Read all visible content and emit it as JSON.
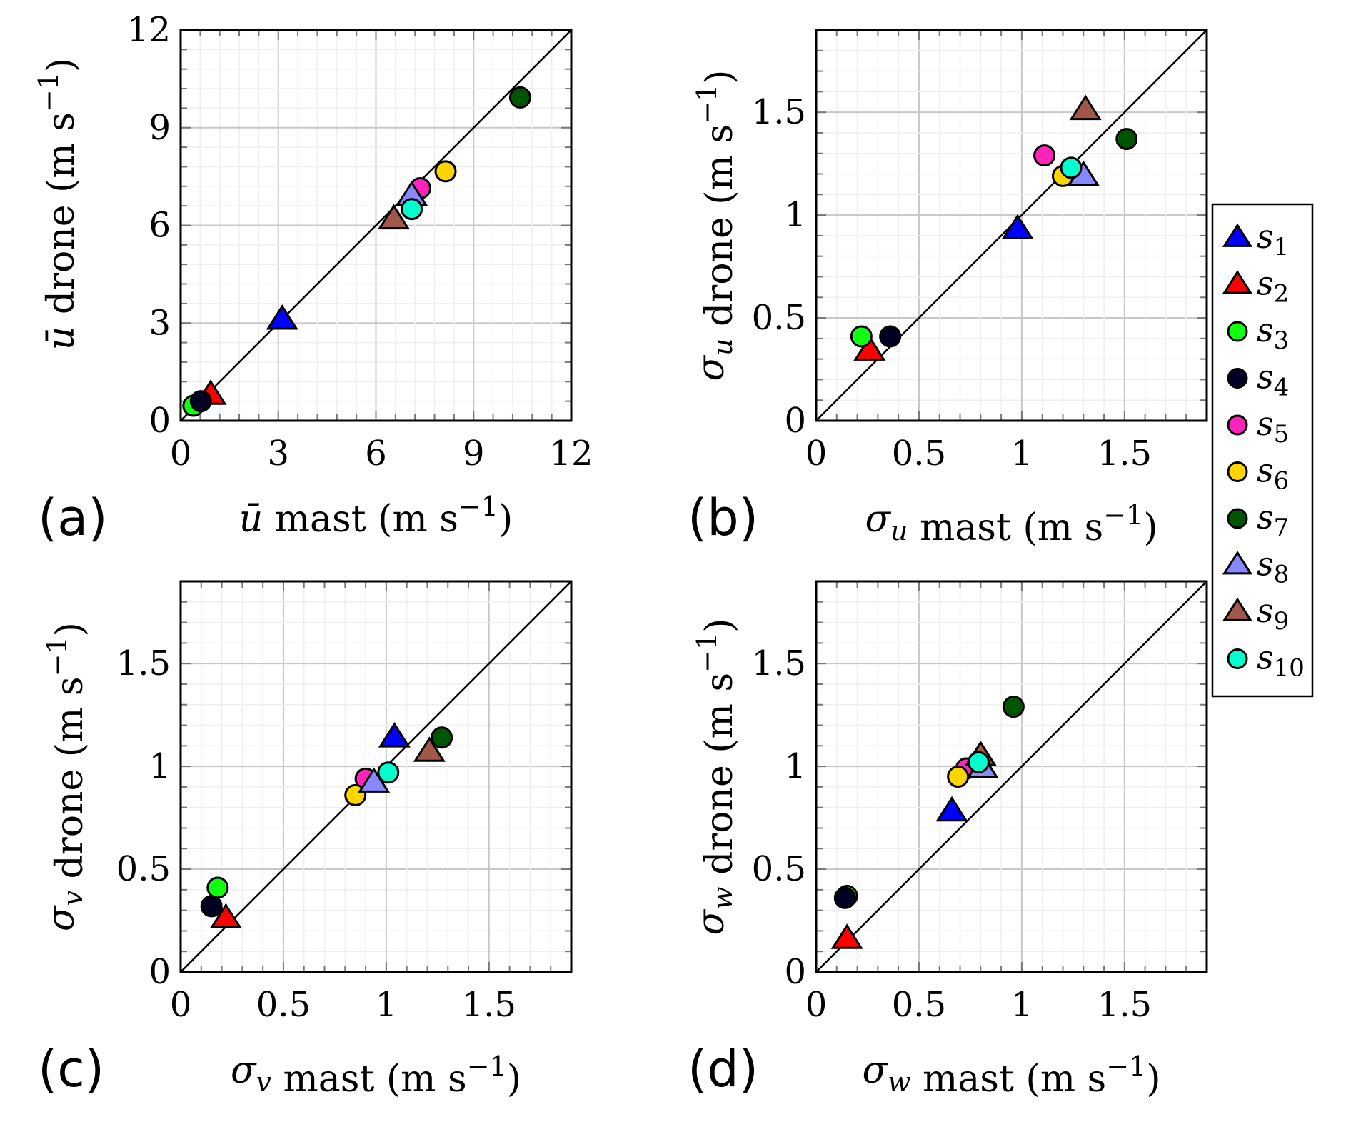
{
  "series": [
    {
      "name": "s",
      "sub": "1",
      "marker": "triangle",
      "color": "#0000ff"
    },
    {
      "name": "s",
      "sub": "2",
      "marker": "triangle",
      "color": "#ff0000"
    },
    {
      "name": "s",
      "sub": "3",
      "marker": "circle",
      "color": "#11ff11"
    },
    {
      "name": "s",
      "sub": "4",
      "marker": "circle",
      "color": "#000022"
    },
    {
      "name": "s",
      "sub": "5",
      "marker": "circle",
      "color": "#ff22bb"
    },
    {
      "name": "s",
      "sub": "6",
      "marker": "circle",
      "color": "#ffd500"
    },
    {
      "name": "s",
      "sub": "7",
      "marker": "circle",
      "color": "#005500"
    },
    {
      "name": "s",
      "sub": "8",
      "marker": "triangle",
      "color": "#8888ff"
    },
    {
      "name": "s",
      "sub": "9",
      "marker": "triangle",
      "color": "#a0584a"
    },
    {
      "name": "s",
      "sub": "10",
      "marker": "circle",
      "color": "#00ffcc"
    }
  ],
  "chart_data": [
    {
      "type": "scatter",
      "panel": "(a)",
      "xlim": [
        0,
        12
      ],
      "ylim": [
        0,
        12
      ],
      "major": 3,
      "minor": 0.6,
      "xticks": [
        "0",
        "3",
        "6",
        "9",
        "12"
      ],
      "yticks": [
        "0",
        "3",
        "6",
        "9",
        "12"
      ],
      "xlabel": {
        "sym": "ū",
        "sub": "",
        "text": " mast (m s",
        "sup": "−1",
        "close": ")"
      },
      "ylabel": {
        "sym": "ū",
        "sub": "",
        "text": " drone (m s",
        "sup": "−1",
        "close": ")"
      },
      "reference_line": "y = x",
      "grid": true,
      "points": [
        [
          3.12,
          3.1
        ],
        [
          0.92,
          0.79
        ],
        [
          0.39,
          0.46
        ],
        [
          0.62,
          0.6
        ],
        [
          7.36,
          7.14
        ],
        [
          8.14,
          7.66
        ],
        [
          10.43,
          9.93
        ],
        [
          7.1,
          6.9
        ],
        [
          6.55,
          6.18
        ],
        [
          7.1,
          6.5
        ]
      ]
    },
    {
      "type": "scatter",
      "panel": "(b)",
      "xlim": [
        0,
        1.9
      ],
      "ylim": [
        0,
        1.9
      ],
      "major": 0.5,
      "minor": 0.1,
      "xticks": [
        "0",
        "0.5",
        "1",
        "1.5"
      ],
      "yticks": [
        "0",
        "0.5",
        "1",
        "1.5"
      ],
      "xlabel": {
        "sym": "σ",
        "sub": "u",
        "text": " mast (m s",
        "sup": "−1",
        "close": ")"
      },
      "ylabel": {
        "sym": "σ",
        "sub": "u",
        "text": " drone (m s",
        "sup": "−1",
        "close": ")"
      },
      "reference_line": "y = x",
      "grid": true,
      "points": [
        [
          0.98,
          0.93
        ],
        [
          0.26,
          0.34
        ],
        [
          0.22,
          0.41
        ],
        [
          0.36,
          0.41
        ],
        [
          1.11,
          1.29
        ],
        [
          1.2,
          1.19
        ],
        [
          1.51,
          1.37
        ],
        [
          1.3,
          1.19
        ],
        [
          1.31,
          1.51
        ],
        [
          1.24,
          1.23
        ]
      ]
    },
    {
      "type": "scatter",
      "panel": "(c)",
      "xlim": [
        0,
        1.9
      ],
      "ylim": [
        0,
        1.9
      ],
      "major": 0.5,
      "minor": 0.1,
      "xticks": [
        "0",
        "0.5",
        "1",
        "1.5"
      ],
      "yticks": [
        "0",
        "0.5",
        "1",
        "1.5"
      ],
      "xlabel": {
        "sym": "σ",
        "sub": "v",
        "text": " mast (m s",
        "sup": "−1",
        "close": ")"
      },
      "ylabel": {
        "sym": "σ",
        "sub": "v",
        "text": " drone (m s",
        "sup": "−1",
        "close": ")"
      },
      "reference_line": "y = x",
      "grid": true,
      "points": [
        [
          1.04,
          1.14
        ],
        [
          0.22,
          0.26
        ],
        [
          0.18,
          0.41
        ],
        [
          0.15,
          0.32
        ],
        [
          0.9,
          0.94
        ],
        [
          0.85,
          0.86
        ],
        [
          1.27,
          1.14
        ],
        [
          0.94,
          0.92
        ],
        [
          1.21,
          1.07
        ],
        [
          1.01,
          0.97
        ]
      ]
    },
    {
      "type": "scatter",
      "panel": "(d)",
      "xlim": [
        0,
        1.9
      ],
      "ylim": [
        0,
        1.9
      ],
      "major": 0.5,
      "minor": 0.1,
      "xticks": [
        "0",
        "0.5",
        "1",
        "1.5"
      ],
      "yticks": [
        "0",
        "0.5",
        "1",
        "1.5"
      ],
      "xlabel": {
        "sym": "σ",
        "sub": "w",
        "text": " mast (m s",
        "sup": "−1",
        "close": ")"
      },
      "ylabel": {
        "sym": "σ",
        "sub": "w",
        "text": " drone (m s",
        "sup": "−1",
        "close": ")"
      },
      "reference_line": "y = x",
      "grid": true,
      "points": [
        [
          0.66,
          0.78
        ],
        [
          0.15,
          0.16
        ],
        [
          0.15,
          0.37
        ],
        [
          0.14,
          0.36
        ],
        [
          0.73,
          0.99
        ],
        [
          0.69,
          0.95
        ],
        [
          0.96,
          1.29
        ],
        [
          0.81,
          0.99
        ],
        [
          0.8,
          1.05
        ],
        [
          0.79,
          1.02
        ]
      ]
    }
  ],
  "legend": {
    "placement": "right"
  }
}
